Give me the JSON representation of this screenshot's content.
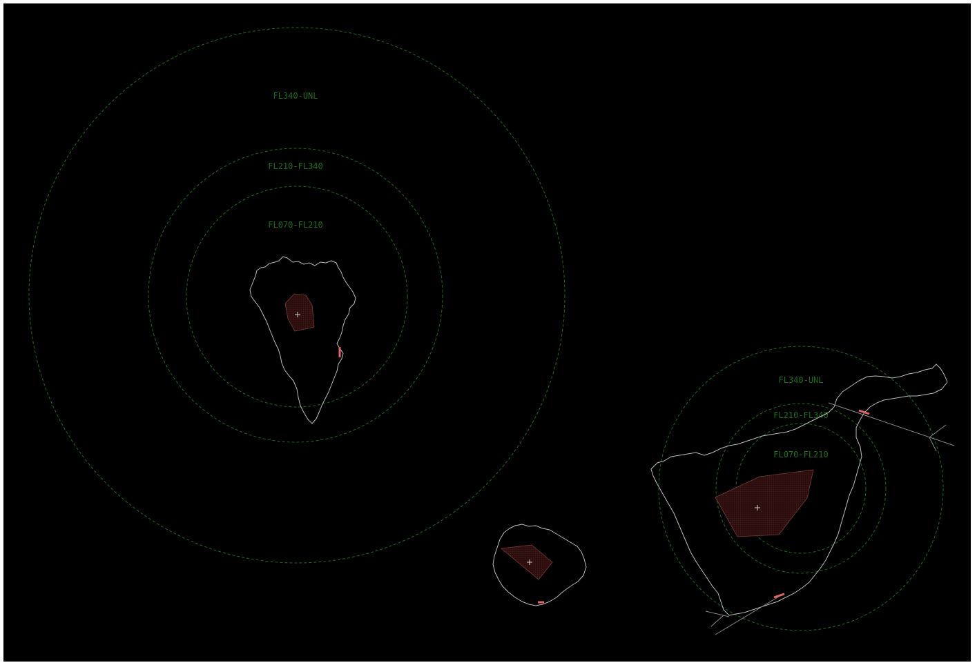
{
  "colors": {
    "background": "#000000",
    "ring": "#1c6b1c",
    "ring_label": "#1f6a1f",
    "coastline": "#bdbdbd",
    "restricted_fill": "#3a1414",
    "restricted_stroke": "#7a3a3a",
    "runway": "#e06666",
    "marker": "#d0d0d0",
    "route": "#8a8a8a"
  },
  "islands": [
    {
      "id": "la-palma",
      "icon": "airport-cross-icon",
      "ring_labels": [
        "FL340-UNL",
        "FL210-FL340",
        "FL070-FL210"
      ]
    },
    {
      "id": "la-gomera",
      "icon": "airport-cross-icon",
      "ring_labels": []
    },
    {
      "id": "tenerife",
      "icon": "airport-cross-icon",
      "ring_labels": [
        "FL340-UNL",
        "FL210-FL340",
        "FL070-FL210"
      ]
    }
  ]
}
